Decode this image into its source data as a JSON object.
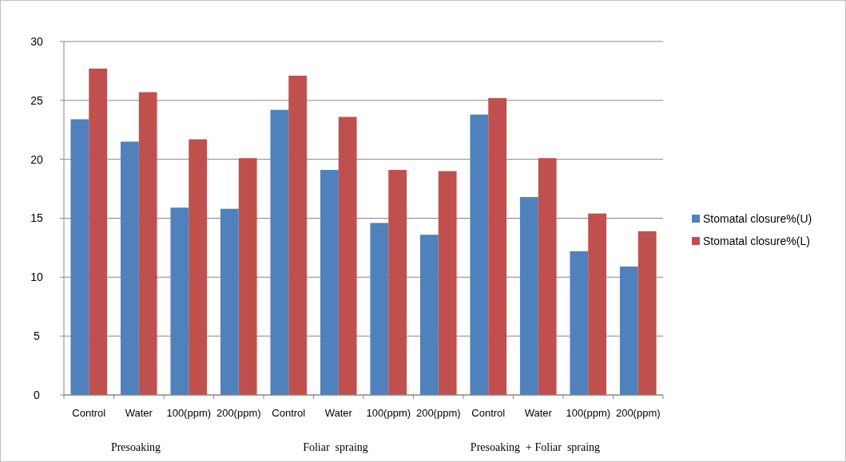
{
  "chart_data": {
    "type": "bar",
    "categories": [
      "Control",
      "Water",
      "100(ppm)",
      "200(ppm)",
      "Control",
      "Water",
      "100(ppm)",
      "200(ppm)",
      "Control",
      "Water",
      "100(ppm)",
      "200(ppm)"
    ],
    "series": [
      {
        "name": "Stomatal closure%(U)",
        "color": "#4f81bd",
        "values": [
          23.4,
          21.5,
          15.9,
          15.8,
          24.2,
          19.1,
          14.6,
          13.6,
          23.8,
          16.8,
          12.2,
          10.9
        ]
      },
      {
        "name": "Stomatal closure%(L)",
        "color": "#c0504d",
        "values": [
          27.7,
          25.7,
          21.7,
          20.1,
          27.1,
          23.6,
          19.1,
          19.0,
          25.2,
          20.1,
          15.4,
          13.9
        ]
      }
    ],
    "annotations": [
      "Presoaking",
      "Foliar  spraing",
      "Presoaking  + Foliar  spraing"
    ],
    "ylim": [
      0,
      30
    ],
    "yticks": [
      0,
      5,
      10,
      15,
      20,
      25,
      30
    ],
    "grid": "y",
    "legend": "right"
  }
}
